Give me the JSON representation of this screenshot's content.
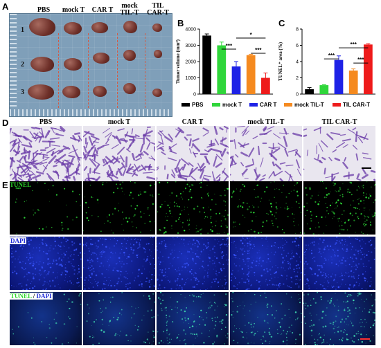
{
  "figure": {
    "panel_a": {
      "letter": "A",
      "columns": [
        "PBS",
        "mock T",
        "CAR T",
        "mock\nTIL-T",
        "TIL\nCAR-T"
      ],
      "rows": [
        "1",
        "2",
        "3"
      ]
    },
    "panel_b": {
      "letter": "B"
    },
    "panel_c": {
      "letter": "C"
    },
    "panel_d": {
      "letter": "D",
      "columns": [
        "PBS",
        "mock T",
        "CAR T",
        "mock TIL-T",
        "TIL CAR-T"
      ]
    },
    "panel_e": {
      "letter": "E",
      "row_labels": {
        "tunel": "TUNEL",
        "dapi": "DAPI",
        "merge_a": "TUNEL",
        "merge_sep": " / ",
        "merge_b": "DAPI"
      }
    },
    "legend": [
      "PBS",
      "mock T",
      "CAR T",
      "mock TIL-T",
      "TIL CAR-T"
    ],
    "colors": {
      "PBS": "#000000",
      "mock T": "#2fd63a",
      "CAR T": "#1e22e6",
      "mock TIL-T": "#f58a1f",
      "TIL CAR-T": "#ee1b1b",
      "tunel_label": "#2bd62b",
      "dapi_label": "#1f2bd8"
    }
  },
  "chart_data": [
    {
      "type": "bar",
      "panel": "B",
      "categories": [
        "PBS",
        "mock T",
        "CAR T",
        "mock TIL-T",
        "TIL CAR-T"
      ],
      "values": [
        3600,
        3000,
        1700,
        2400,
        1000
      ],
      "errors": [
        100,
        200,
        300,
        50,
        300
      ],
      "ylabel": "Tumor volume (mm³)",
      "ylim": [
        0,
        4000
      ],
      "yticks": [
        "0",
        "1000",
        "2000",
        "3000",
        "4000"
      ],
      "significance": [
        {
          "from": 1,
          "to": 2,
          "label": "***"
        },
        {
          "from": 2,
          "to": 4,
          "label": "*"
        },
        {
          "from": 3,
          "to": 4,
          "label": "***"
        }
      ]
    },
    {
      "type": "bar",
      "panel": "C",
      "categories": [
        "PBS",
        "mock T",
        "CAR T",
        "mock TIL-T",
        "TIL CAR-T"
      ],
      "values": [
        0.6,
        1.1,
        4.2,
        2.9,
        6.1
      ],
      "errors": [
        0.2,
        0.05,
        0.5,
        0.2,
        0.1
      ],
      "ylabel": "TUNEL⁺ area (%)",
      "ylim": [
        0,
        8
      ],
      "yticks": [
        "0",
        "2",
        "4",
        "6",
        "8"
      ],
      "significance": [
        {
          "from": 1,
          "to": 2,
          "label": "***"
        },
        {
          "from": 2,
          "to": 4,
          "label": "***"
        },
        {
          "from": 3,
          "to": 4,
          "label": "***"
        }
      ]
    }
  ]
}
